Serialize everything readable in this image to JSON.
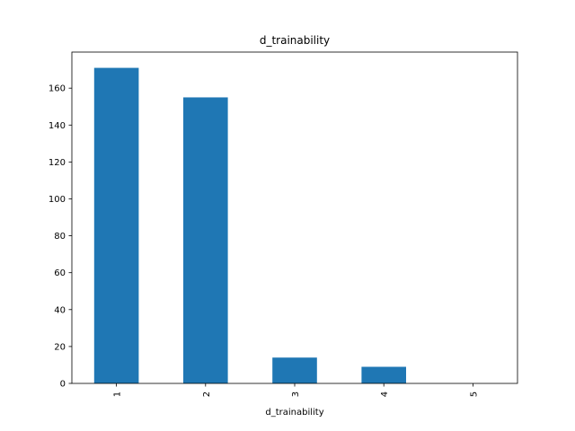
{
  "chart_data": {
    "type": "bar",
    "title": "d_trainability",
    "xlabel": "d_trainability",
    "ylabel": "",
    "categories": [
      "1",
      "2",
      "3",
      "4",
      "5"
    ],
    "values": [
      171,
      155,
      14,
      9,
      0
    ],
    "ylim": [
      0,
      179.55
    ],
    "yticks": [
      0,
      20,
      40,
      60,
      80,
      100,
      120,
      140,
      160
    ],
    "grid": false,
    "legend": "none",
    "bar_color": "#1f77b4",
    "x_tick_rotation": 90
  }
}
